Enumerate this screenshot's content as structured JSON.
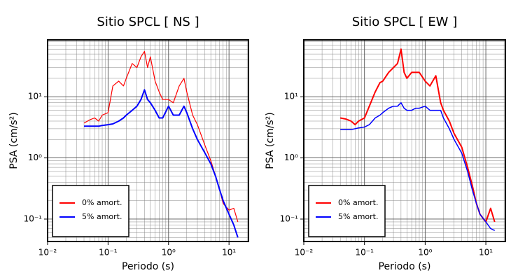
{
  "chart_data": [
    {
      "type": "line",
      "title": "Sitio SPCL [ NS ]",
      "x_label": "Periodo (s)",
      "y_label": "PSA (cm/s²)",
      "x": [
        0.04,
        0.05,
        0.06,
        0.07,
        0.08,
        0.1,
        0.12,
        0.15,
        0.18,
        0.2,
        0.25,
        0.3,
        0.35,
        0.4,
        0.45,
        0.5,
        0.6,
        0.7,
        0.8,
        1.0,
        1.2,
        1.5,
        1.8,
        2.0,
        2.5,
        3,
        4,
        5,
        6,
        7,
        8,
        10,
        12,
        14
      ],
      "series": [
        {
          "name": "0% amort.",
          "color": "#ff0000",
          "width": 1.2,
          "values": [
            3.7,
            4.2,
            4.5,
            4.0,
            5,
            5.5,
            15,
            18,
            15,
            20,
            35,
            30,
            45,
            55,
            30,
            45,
            18,
            12,
            9,
            9,
            8,
            15,
            20,
            12,
            5,
            3.5,
            1.6,
            0.9,
            0.5,
            0.3,
            0.18,
            0.14,
            0.15,
            0.09
          ]
        },
        {
          "name": "5% amort.",
          "color": "#0000ff",
          "width": 2,
          "values": [
            3.3,
            3.3,
            3.3,
            3.3,
            3.4,
            3.5,
            3.6,
            4,
            4.5,
            5,
            6,
            7,
            9,
            13,
            9,
            8,
            6,
            4.5,
            4.5,
            7,
            5,
            5,
            7,
            5.5,
            3,
            2,
            1.2,
            0.8,
            0.5,
            0.3,
            0.2,
            0.12,
            0.08,
            0.05
          ]
        }
      ],
      "xscale": "log",
      "yscale": "log",
      "xlim": [
        0.01,
        21
      ],
      "ylim": [
        0.043,
        85
      ],
      "xticks": [
        {
          "value": 0.01,
          "label": "10⁻²"
        },
        {
          "value": 0.1,
          "label": "10⁻¹"
        },
        {
          "value": 1,
          "label": "10⁰"
        },
        {
          "value": 10,
          "label": "10¹"
        }
      ],
      "yticks": [
        {
          "value": 0.1,
          "label": "10⁻¹"
        },
        {
          "value": 1,
          "label": "10⁰"
        },
        {
          "value": 10,
          "label": "10¹"
        }
      ],
      "grid": true,
      "legend": "lower left"
    },
    {
      "type": "line",
      "title": "Sitio SPCL [ EW ]",
      "x_label": "Periodo (s)",
      "y_label": "PSA (cm/s²)",
      "x": [
        0.04,
        0.05,
        0.06,
        0.07,
        0.08,
        0.1,
        0.12,
        0.15,
        0.18,
        0.2,
        0.25,
        0.3,
        0.35,
        0.4,
        0.45,
        0.5,
        0.6,
        0.7,
        0.8,
        1.0,
        1.2,
        1.5,
        1.8,
        2.0,
        2.5,
        3,
        4,
        5,
        6,
        7,
        8,
        10,
        12,
        14
      ],
      "series": [
        {
          "name": "0% amort.",
          "color": "#ff0000",
          "width": 2,
          "values": [
            4.5,
            4.3,
            4,
            3.5,
            4,
            4.5,
            7,
            12,
            17,
            18,
            25,
            30,
            35,
            60,
            25,
            20,
            25,
            25,
            25,
            18,
            15,
            22,
            8,
            6,
            4,
            2.5,
            1.5,
            0.7,
            0.35,
            0.18,
            0.12,
            0.09,
            0.15,
            0.09
          ]
        },
        {
          "name": "5% amort.",
          "color": "#0000ff",
          "width": 1.5,
          "values": [
            2.9,
            2.9,
            2.9,
            3,
            3.1,
            3.2,
            3.5,
            4.5,
            5,
            5.5,
            6.5,
            7,
            7,
            8,
            6.5,
            6,
            6,
            6.5,
            6.5,
            7,
            6,
            6,
            6,
            4.5,
            3,
            2,
            1.2,
            0.6,
            0.3,
            0.18,
            0.12,
            0.09,
            0.07,
            0.065
          ]
        }
      ],
      "xscale": "log",
      "yscale": "log",
      "xlim": [
        0.01,
        21
      ],
      "ylim": [
        0.043,
        85
      ],
      "xticks": [
        {
          "value": 0.01,
          "label": "10⁻²"
        },
        {
          "value": 0.1,
          "label": "10⁻¹"
        },
        {
          "value": 1,
          "label": "10⁰"
        },
        {
          "value": 10,
          "label": "10¹"
        }
      ],
      "yticks": [
        {
          "value": 0.1,
          "label": "10⁻¹"
        },
        {
          "value": 1,
          "label": "10⁰"
        },
        {
          "value": 10,
          "label": "10¹"
        }
      ],
      "grid": true,
      "legend": "lower left"
    }
  ]
}
